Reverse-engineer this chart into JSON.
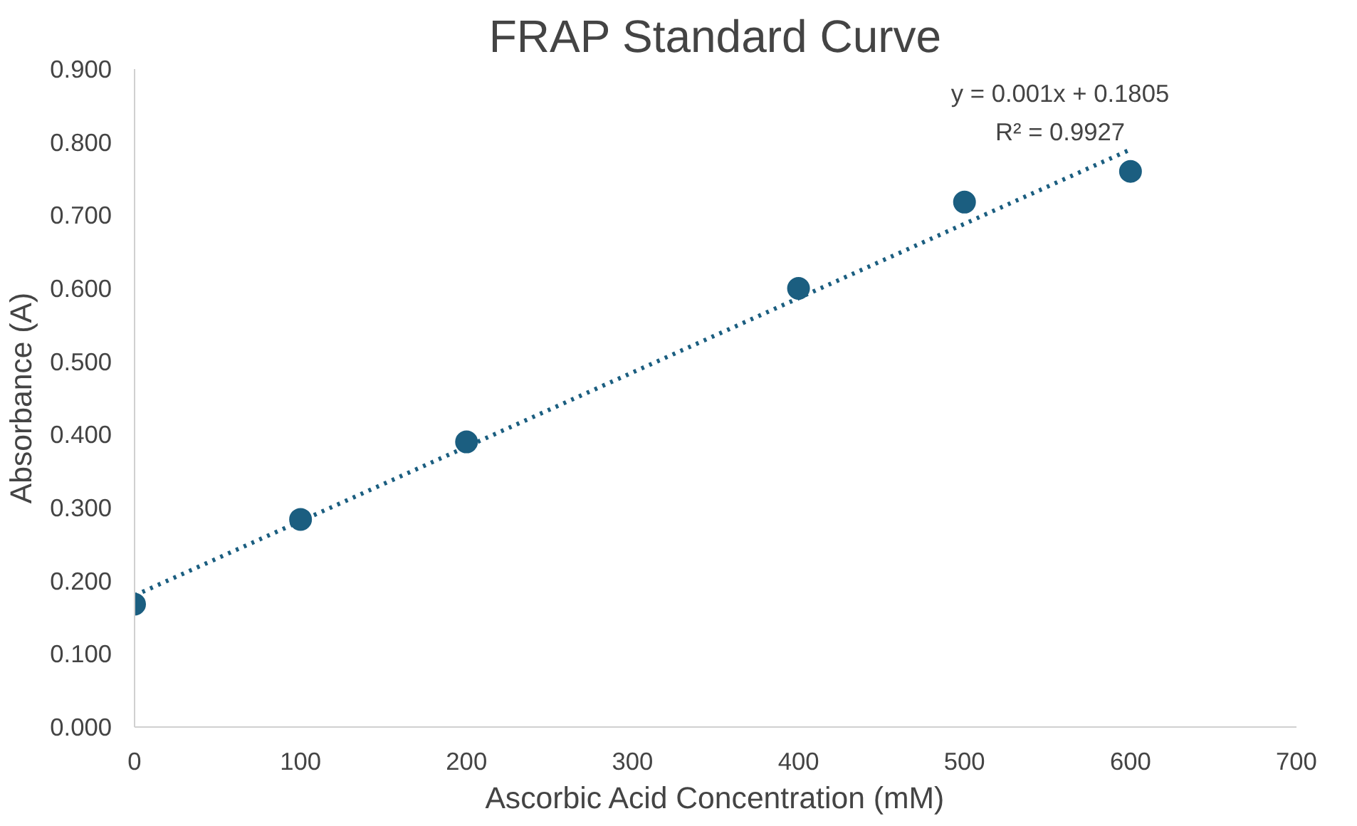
{
  "chart_data": {
    "type": "scatter",
    "title": "FRAP Standard Curve",
    "xlabel": "Ascorbic Acid Concentration (mM)",
    "ylabel": "Absorbance (A)",
    "xlim": [
      0,
      700
    ],
    "xticks": [
      0,
      100,
      200,
      300,
      400,
      500,
      600,
      700
    ],
    "ylim": [
      0,
      0.9
    ],
    "yticks": [
      {
        "value": 0,
        "label": "0.000"
      },
      {
        "value": 0.1,
        "label": "0.100"
      },
      {
        "value": 0.2,
        "label": "0.200"
      },
      {
        "value": 0.3,
        "label": "0.300"
      },
      {
        "value": 0.4,
        "label": "0.400"
      },
      {
        "value": 0.5,
        "label": "0.500"
      },
      {
        "value": 0.6,
        "label": "0.600"
      },
      {
        "value": 0.7,
        "label": "0.700"
      },
      {
        "value": 0.8,
        "label": "0.800"
      },
      {
        "value": 0.9,
        "label": "0.900"
      }
    ],
    "grid": false,
    "marker": "circle",
    "series": [
      {
        "color": "#1b5e80",
        "x": [
          0,
          100,
          200,
          400,
          500,
          600
        ],
        "values": [
          0.168,
          0.284,
          0.39,
          0.6,
          0.718,
          0.76
        ]
      },
      {
        "type": "line",
        "color": "#1b5e80",
        "line_style": "dotted",
        "marker": "none",
        "x": [
          0,
          600
        ],
        "values": [
          0.18,
          0.79
        ]
      }
    ],
    "annotations": [
      "y = 0.001x + 0.1805",
      "R² = 0.9927"
    ]
  }
}
